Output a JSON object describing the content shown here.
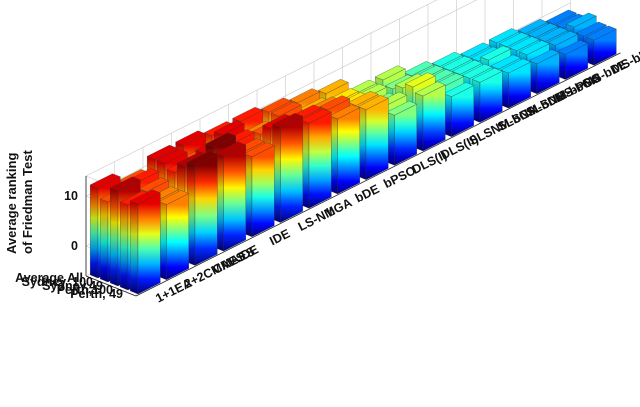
{
  "chart_data": {
    "type": "bar3d",
    "zlabel_line1": "Average ranking",
    "zlabel_line2": "of Friedman Test",
    "zticks": [
      0,
      10
    ],
    "zlim": [
      -6,
      14
    ],
    "rows": [
      "Perth, 49",
      "Perth,100",
      "Sydney,49",
      "Sydney, 100",
      "Average All"
    ],
    "algorithms": [
      "1+1EA",
      "2+2CMAES",
      "CMAES",
      "DE",
      "IDE",
      "LS-NM",
      "bGA",
      "bDE",
      "bPSO",
      "DLS(I)",
      "DLS(II)",
      "SLSNM-bGA",
      "SLSNM-bDE",
      "SLSNM-bPSO",
      "MS-bGA",
      "MS-bDE",
      "MS-bPSO"
    ],
    "values": [
      [
        12,
        9,
        14,
        13,
        10,
        13,
        11,
        9,
        8,
        4,
        5,
        2,
        2,
        1,
        0,
        -1,
        -1
      ],
      [
        11,
        9,
        13,
        14,
        10,
        12,
        11,
        10,
        8,
        5,
        6,
        3,
        2,
        1,
        1,
        0,
        -1
      ],
      [
        13,
        10,
        11,
        12,
        11,
        10,
        9,
        9,
        7,
        4,
        5,
        3,
        2,
        2,
        1,
        0,
        0
      ],
      [
        10,
        11,
        12,
        10,
        12,
        9,
        10,
        8,
        7,
        5,
        4,
        3,
        2,
        1,
        1,
        0,
        -1
      ],
      [
        12,
        10,
        12,
        12,
        11,
        11,
        10,
        9,
        8,
        5,
        5,
        3,
        2,
        1,
        1,
        0,
        -1
      ]
    ],
    "colormap": "jet",
    "grid": true
  }
}
